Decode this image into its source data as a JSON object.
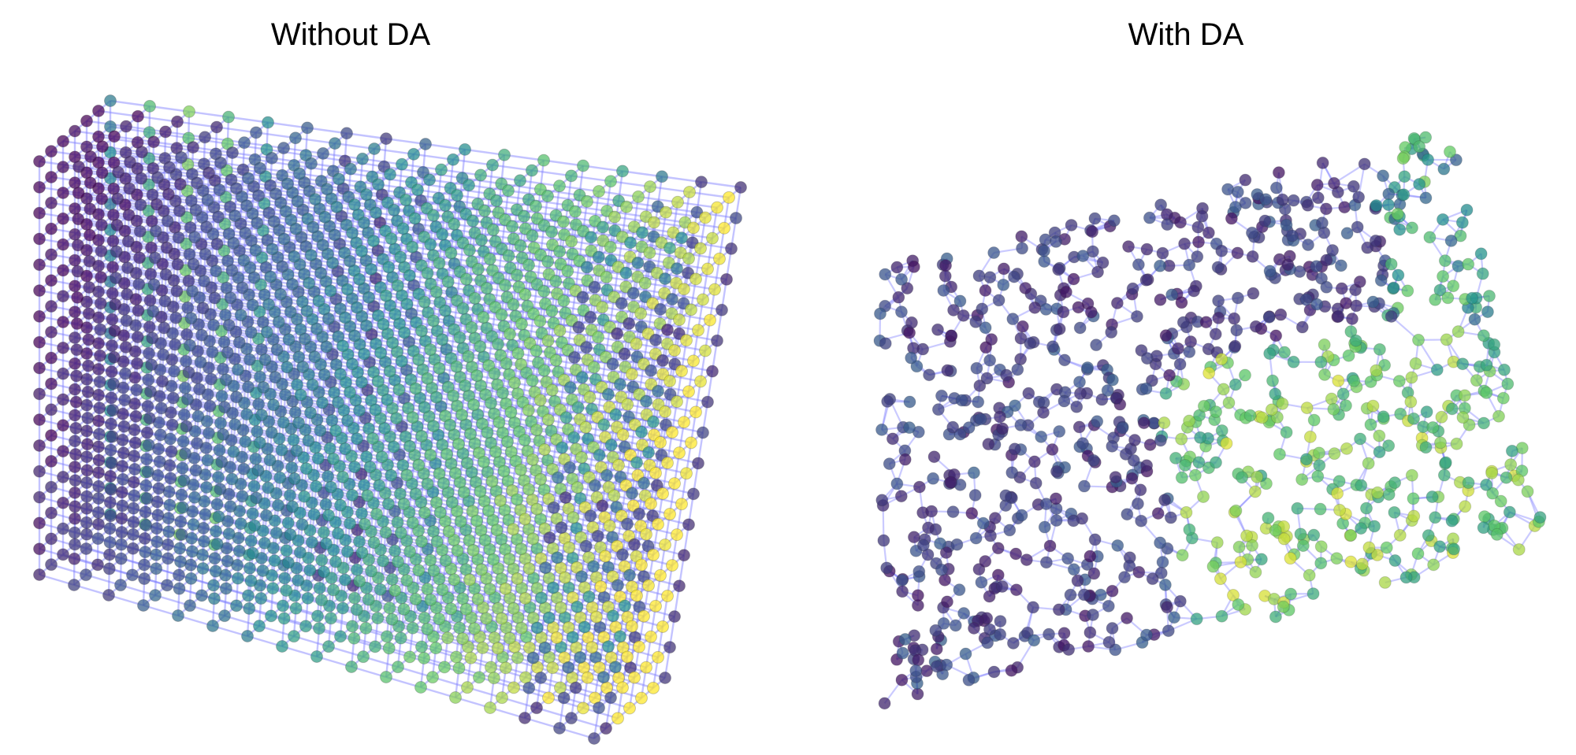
{
  "panels": [
    {
      "id": "left",
      "title": "Without DA"
    },
    {
      "id": "right",
      "title": "With DA"
    }
  ],
  "colors": {
    "edge": "#7b7bff",
    "colormap": [
      "#440154",
      "#3b528b",
      "#21908d",
      "#5dc863",
      "#fde725"
    ]
  }
}
